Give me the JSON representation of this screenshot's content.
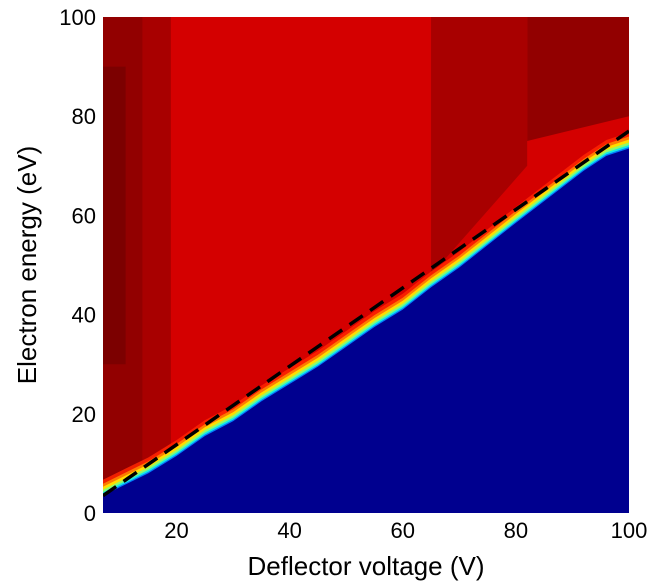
{
  "chart_data": {
    "type": "heatmap",
    "title": "",
    "xlabel": "Deflector voltage (V)",
    "ylabel": "Electron energy (eV)",
    "xlim": [
      7,
      100
    ],
    "ylim": [
      0,
      100
    ],
    "x_ticks": [
      20,
      40,
      60,
      80,
      100
    ],
    "y_ticks": [
      0,
      20,
      40,
      60,
      80,
      100
    ],
    "x_tick_labels": [
      "20",
      "40",
      "60",
      "80",
      "100"
    ],
    "y_tick_labels": [
      "0",
      "20",
      "40",
      "60",
      "80",
      "100"
    ],
    "colormap": "jet",
    "colors": {
      "low": "#00008f",
      "high": "#d40000",
      "high_dark": "#8b0000",
      "fringe": [
        "#0064ff",
        "#00e5ff",
        "#7dff7a",
        "#ffef00",
        "#ff8c00",
        "#ff2400"
      ]
    },
    "cutoff_boundary": {
      "x": [
        7,
        15,
        20,
        25,
        30,
        35,
        40,
        45,
        50,
        55,
        60,
        65,
        70,
        75,
        80,
        84,
        88,
        92,
        96,
        100
      ],
      "y": [
        3.5,
        8.0,
        11.5,
        15.5,
        18.5,
        22.5,
        26.0,
        29.5,
        33.5,
        37.5,
        41.0,
        45.5,
        49.5,
        54.0,
        58.5,
        62.0,
        65.5,
        69.0,
        72.0,
        73.5
      ]
    },
    "fit_line": {
      "style": "dashed",
      "color": "#000000",
      "x": [
        7,
        100
      ],
      "y": [
        3.5,
        77.0
      ]
    },
    "high_region_patches": [
      {
        "shade": "high_dark",
        "x": [
          7,
          14,
          14,
          7
        ],
        "y": [
          100,
          100,
          5,
          5
        ]
      },
      {
        "shade": "high_dark",
        "x": [
          82,
          100,
          100,
          82
        ],
        "y": [
          100,
          100,
          80,
          75
        ]
      },
      {
        "shade": "high_mid",
        "x": [
          14,
          19,
          19,
          14
        ],
        "y": [
          100,
          100,
          14,
          10
        ]
      },
      {
        "shade": "high_mid",
        "x": [
          65,
          82,
          82,
          65
        ],
        "y": [
          100,
          100,
          70,
          48
        ]
      },
      {
        "shade": "high_deep",
        "x": [
          7,
          11,
          11,
          7
        ],
        "y": [
          90,
          90,
          30,
          30
        ]
      }
    ]
  }
}
